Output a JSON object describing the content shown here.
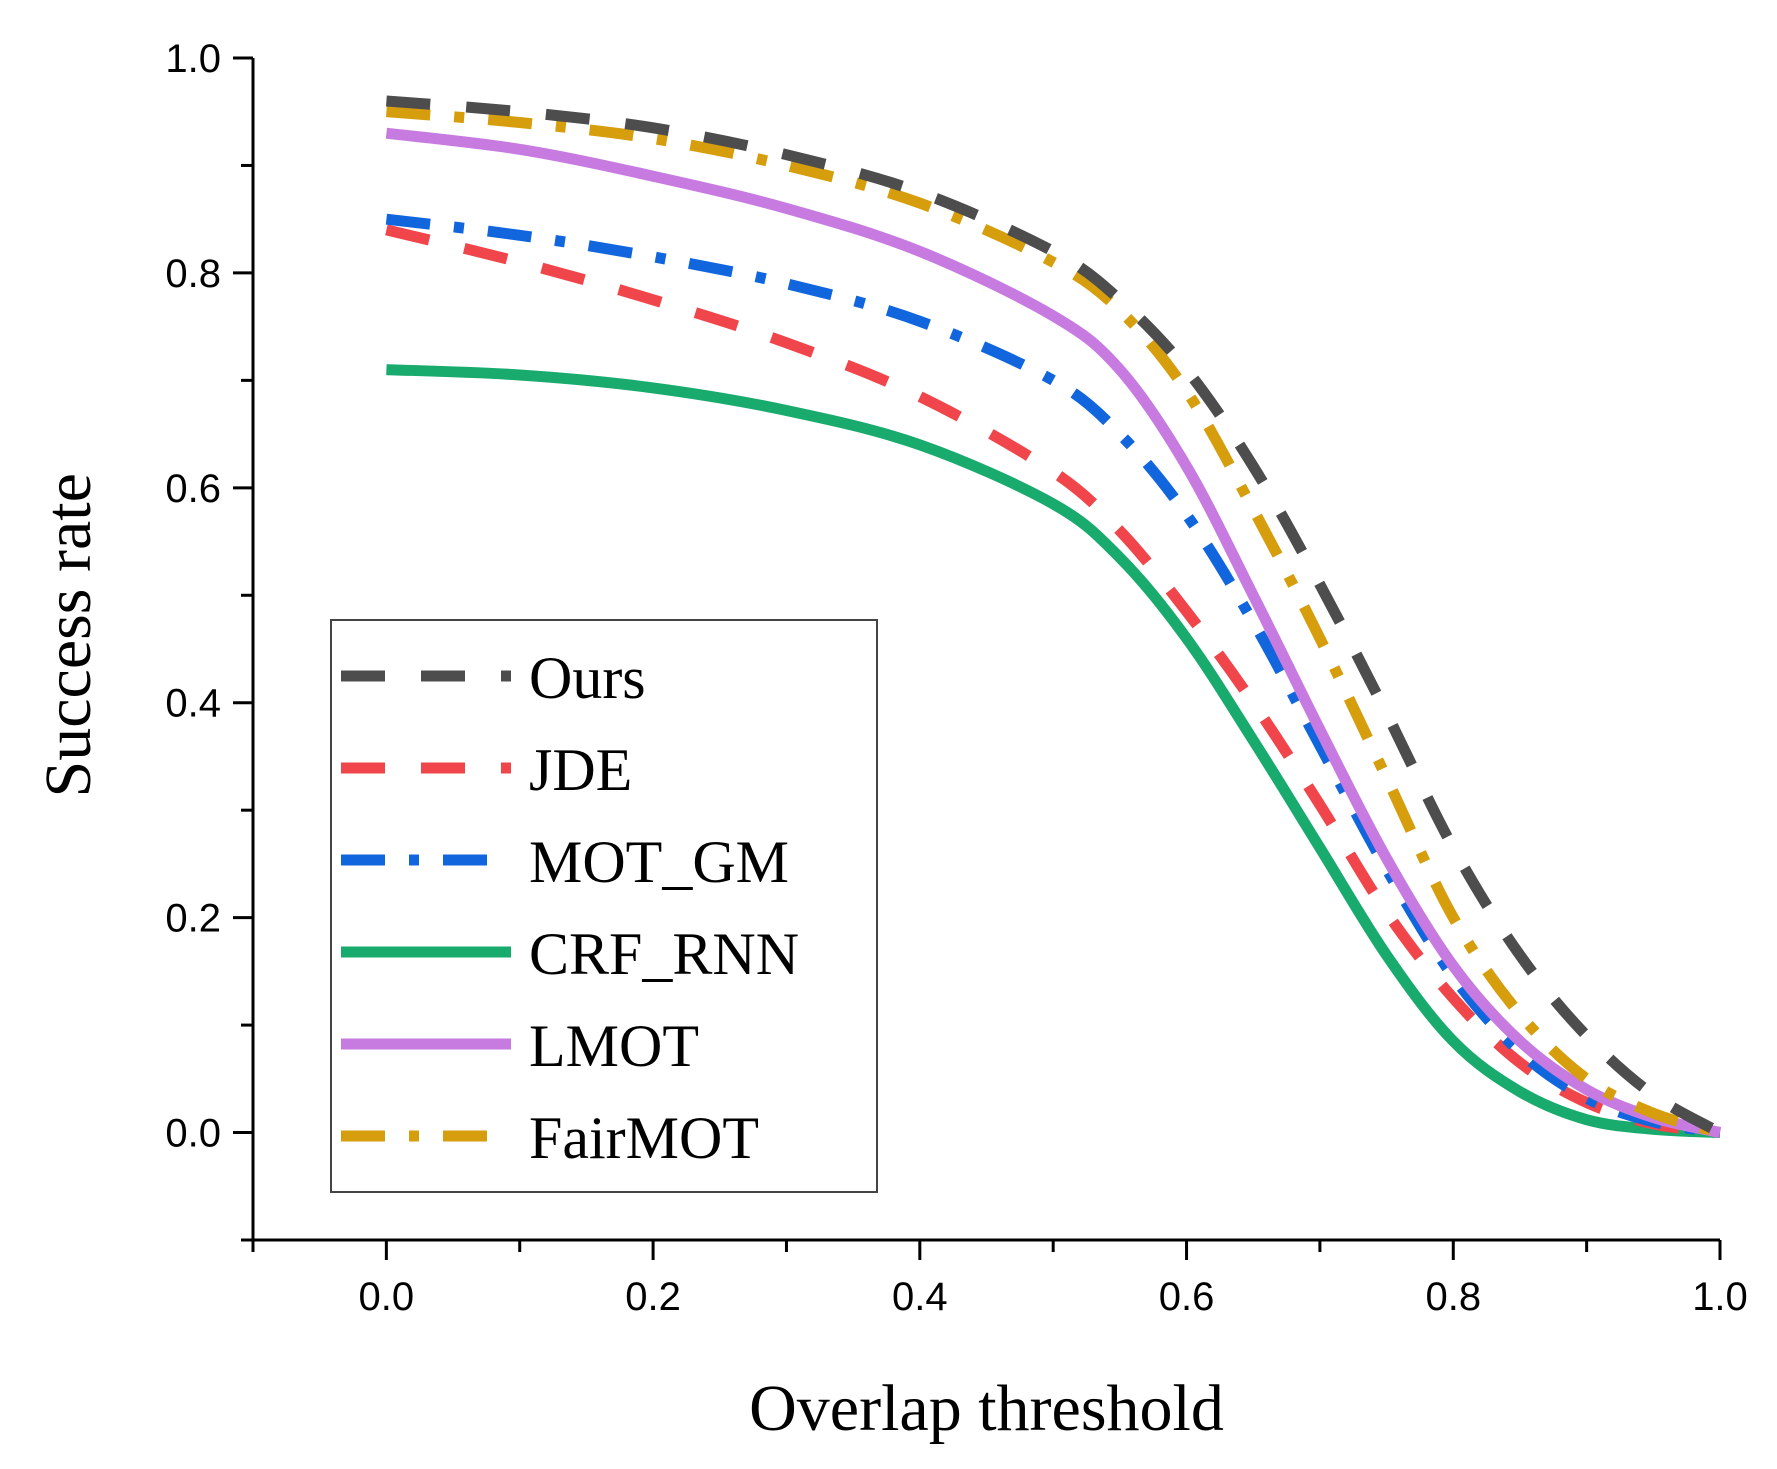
{
  "chart_data": {
    "type": "line",
    "xlabel": "Overlap threshold",
    "ylabel": "Success rate",
    "xlim": [
      -0.1,
      1.0
    ],
    "ylim": [
      -0.1,
      1.0
    ],
    "xticks": [
      "0.0",
      "0.2",
      "0.4",
      "0.6",
      "0.8",
      "1.0"
    ],
    "yticks": [
      "0.0",
      "0.2",
      "0.4",
      "0.6",
      "0.8",
      "1.0"
    ],
    "grid": false,
    "legend_position": "bottom-left",
    "x": [
      0.0,
      0.1,
      0.2,
      0.3,
      0.4,
      0.5,
      0.55,
      0.6,
      0.65,
      0.7,
      0.75,
      0.8,
      0.85,
      0.9,
      0.95,
      1.0
    ],
    "series": [
      {
        "name": "Ours",
        "color": "#4d4d4d",
        "style": "dash",
        "values": [
          0.96,
          0.95,
          0.935,
          0.91,
          0.875,
          0.82,
          0.775,
          0.71,
          0.62,
          0.51,
          0.39,
          0.265,
          0.165,
          0.09,
          0.035,
          0.0
        ]
      },
      {
        "name": "JDE",
        "color": "#f0454a",
        "style": "dash",
        "values": [
          0.84,
          0.81,
          0.775,
          0.735,
          0.685,
          0.615,
          0.56,
          0.485,
          0.4,
          0.305,
          0.205,
          0.125,
          0.065,
          0.028,
          0.008,
          0.0
        ]
      },
      {
        "name": "MOT_GM",
        "color": "#1166dd",
        "style": "dashdot",
        "values": [
          0.85,
          0.835,
          0.815,
          0.79,
          0.755,
          0.7,
          0.65,
          0.575,
          0.475,
          0.36,
          0.245,
          0.145,
          0.075,
          0.032,
          0.01,
          0.0
        ]
      },
      {
        "name": "CRF_RNN",
        "color": "#19aa6e",
        "style": "solid",
        "values": [
          0.71,
          0.705,
          0.693,
          0.672,
          0.64,
          0.585,
          0.535,
          0.46,
          0.365,
          0.265,
          0.165,
          0.085,
          0.038,
          0.012,
          0.003,
          0.0
        ]
      },
      {
        "name": "LMOT",
        "color": "#c77ae0",
        "style": "solid",
        "values": [
          0.93,
          0.915,
          0.89,
          0.86,
          0.82,
          0.76,
          0.71,
          0.62,
          0.5,
          0.375,
          0.255,
          0.155,
          0.085,
          0.04,
          0.014,
          0.0
        ]
      },
      {
        "name": "FairMOT",
        "color": "#d69e0c",
        "style": "dashdot",
        "values": [
          0.95,
          0.94,
          0.925,
          0.9,
          0.865,
          0.81,
          0.765,
          0.69,
          0.58,
          0.46,
          0.33,
          0.2,
          0.11,
          0.05,
          0.018,
          0.0
        ]
      }
    ]
  }
}
